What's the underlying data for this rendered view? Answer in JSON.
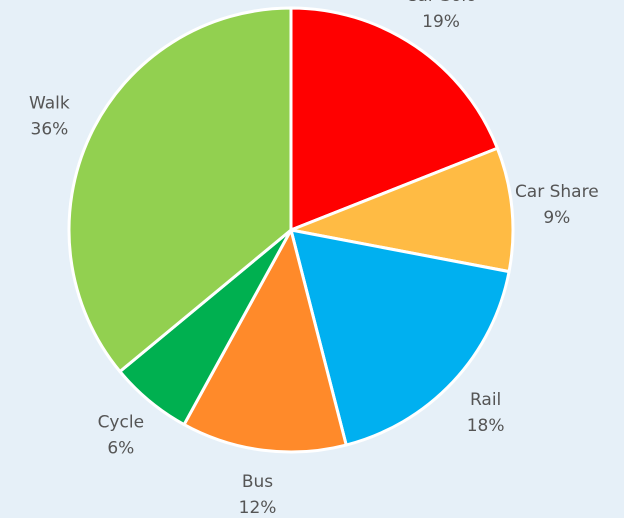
{
  "chart_data": {
    "type": "pie",
    "categories": [
      "Car Solo",
      "Car Share",
      "Rail",
      "Bus",
      "Cycle",
      "Walk"
    ],
    "values": [
      19,
      9,
      18,
      12,
      6,
      36
    ],
    "value_labels": [
      "19%",
      "9%",
      "18%",
      "12%",
      "6%",
      "36%"
    ],
    "colors": [
      "#ff0000",
      "#ffbb44",
      "#00b0f0",
      "#ff8a2a",
      "#00b050",
      "#92d050"
    ]
  }
}
